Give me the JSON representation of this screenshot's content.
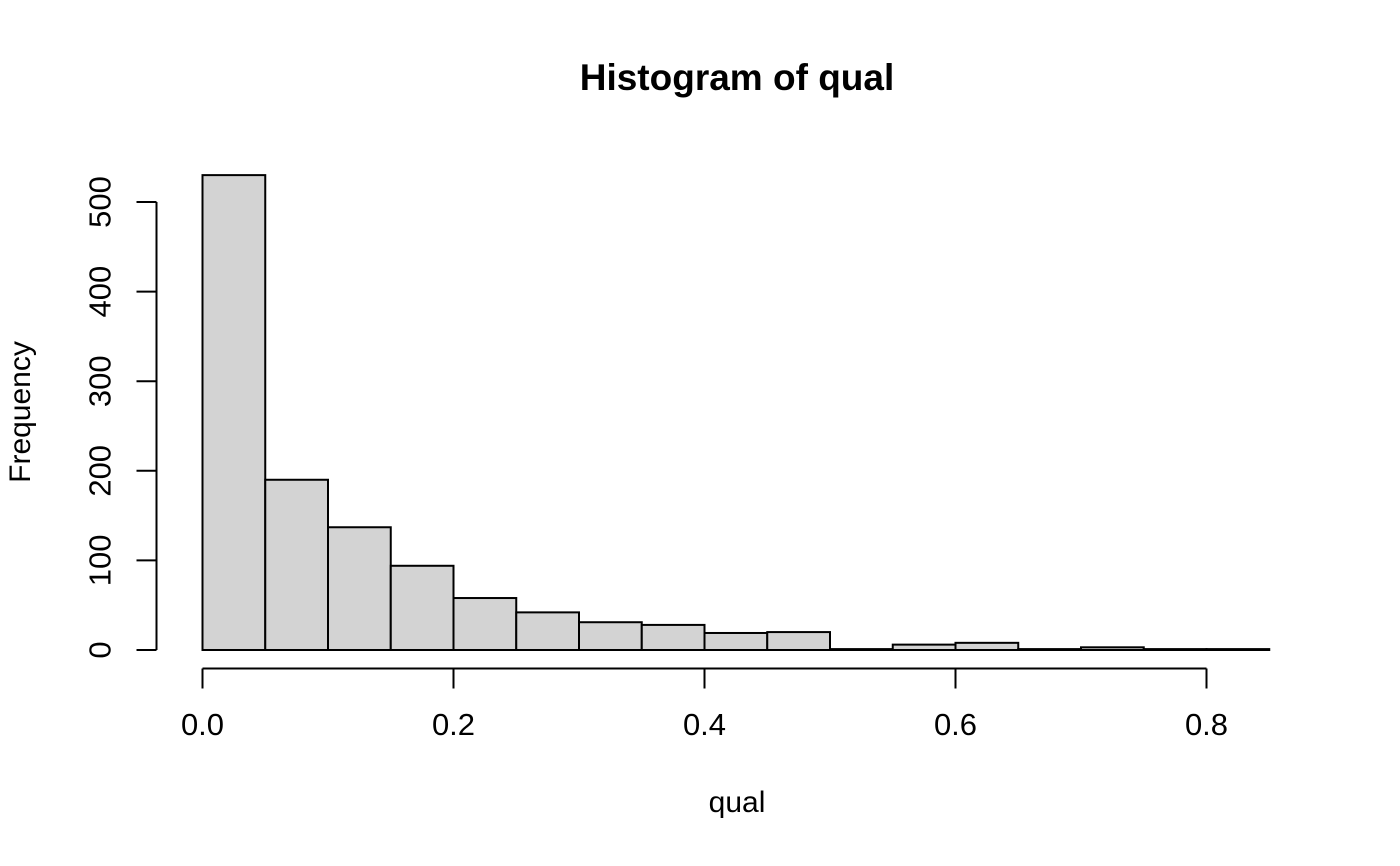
{
  "page": {
    "background": "#ffffff"
  },
  "chart_data": {
    "type": "bar",
    "subtype": "histogram",
    "title": "Histogram of qual",
    "xlabel": "qual",
    "ylabel": "Frequency",
    "bin_start": 0.0,
    "bin_width": 0.05,
    "bin_edges": [
      0.0,
      0.05,
      0.1,
      0.15,
      0.2,
      0.25,
      0.3,
      0.35,
      0.4,
      0.45,
      0.5,
      0.55,
      0.6,
      0.65,
      0.7,
      0.75,
      0.8,
      0.85
    ],
    "counts": [
      530,
      190,
      137,
      94,
      58,
      42,
      31,
      28,
      19,
      20,
      1,
      6,
      8,
      1,
      3,
      1,
      1
    ],
    "x_axis": {
      "tick_values": [
        0.0,
        0.2,
        0.4,
        0.6,
        0.8
      ],
      "tick_labels": [
        "0.0",
        "0.2",
        "0.4",
        "0.6",
        "0.8"
      ],
      "range": [
        0,
        0.85
      ]
    },
    "y_axis": {
      "tick_values": [
        0,
        100,
        200,
        300,
        400,
        500
      ],
      "tick_labels": [
        "0",
        "100",
        "200",
        "300",
        "400",
        "500"
      ],
      "range": [
        0,
        530
      ]
    },
    "grid": false,
    "legend": null,
    "style": {
      "bar_fill": "#d3d3d3",
      "bar_stroke": "#000000",
      "axis_color": "#000000",
      "text_color": "#000000",
      "background": "#ffffff"
    }
  }
}
